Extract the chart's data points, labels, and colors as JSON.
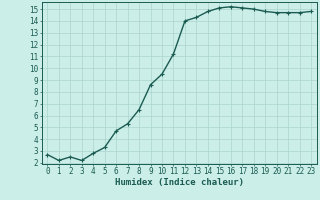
{
  "x": [
    0,
    1,
    2,
    3,
    4,
    5,
    6,
    7,
    8,
    9,
    10,
    11,
    12,
    13,
    14,
    15,
    16,
    17,
    18,
    19,
    20,
    21,
    22,
    23
  ],
  "y": [
    2.7,
    2.2,
    2.5,
    2.2,
    2.8,
    3.3,
    4.7,
    5.3,
    6.5,
    8.6,
    9.5,
    11.2,
    14.0,
    14.3,
    14.8,
    15.1,
    15.2,
    15.1,
    15.0,
    14.8,
    14.7,
    14.7,
    14.7,
    14.8
  ],
  "xlabel": "Humidex (Indice chaleur)",
  "bg_color": "#cceee8",
  "grid_color": "#aad4cc",
  "line_color": "#1a5c52",
  "xlim": [
    -0.5,
    23.5
  ],
  "ylim": [
    1.9,
    15.6
  ],
  "yticks": [
    2,
    3,
    4,
    5,
    6,
    7,
    8,
    9,
    10,
    11,
    12,
    13,
    14,
    15
  ],
  "xticks": [
    0,
    1,
    2,
    3,
    4,
    5,
    6,
    7,
    8,
    9,
    10,
    11,
    12,
    13,
    14,
    15,
    16,
    17,
    18,
    19,
    20,
    21,
    22,
    23
  ],
  "xtick_labels": [
    "0",
    "1",
    "2",
    "3",
    "4",
    "5",
    "6",
    "7",
    "8",
    "9",
    "10",
    "11",
    "12",
    "13",
    "14",
    "15",
    "16",
    "17",
    "18",
    "19",
    "20",
    "21",
    "22",
    "23"
  ],
  "xlabel_fontsize": 6.5,
  "tick_fontsize": 5.5,
  "line_width": 1.0,
  "marker_size": 2.5
}
